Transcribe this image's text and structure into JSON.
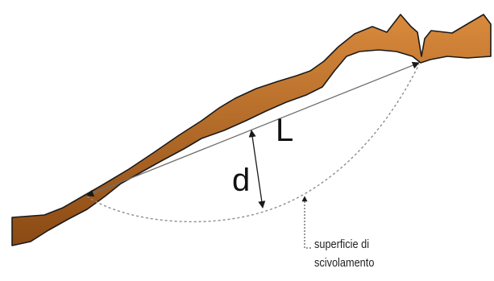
{
  "labels": {
    "length_symbol": "L",
    "depth_symbol": "d",
    "surface_line1": "superficie di",
    "surface_line2": "scivolamento"
  },
  "colors": {
    "soil_dark": "#8a4a14",
    "soil_light": "#d98a3c",
    "outline": "#1a1a1a",
    "chord": "#6f6f6f",
    "surface": "#8c8c8c"
  }
}
